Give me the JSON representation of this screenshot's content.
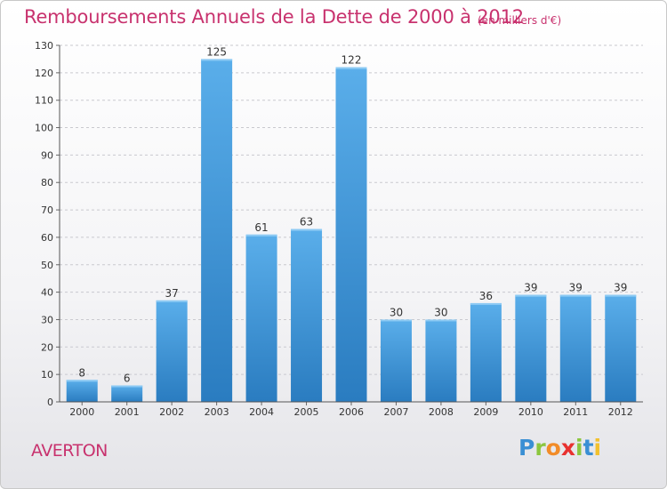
{
  "header": {
    "title": "Remboursements Annuels de la Dette de 2000 à 2012",
    "unit": "(en milliers d'€)"
  },
  "footer": {
    "town": "AVERTON",
    "logo_letters": [
      "P",
      "r",
      "o",
      "x",
      "i",
      "t",
      "i"
    ],
    "logo_colors": [
      "#3a8fd4",
      "#8cc63f",
      "#f28c28",
      "#e8312f",
      "#8cc63f",
      "#3a8fd4",
      "#f2c12e"
    ]
  },
  "chart_data": {
    "type": "bar",
    "categories": [
      "2000",
      "2001",
      "2002",
      "2003",
      "2004",
      "2005",
      "2006",
      "2007",
      "2008",
      "2009",
      "2010",
      "2011",
      "2012"
    ],
    "values": [
      8,
      6,
      37,
      125,
      61,
      63,
      122,
      30,
      30,
      36,
      39,
      39,
      39
    ],
    "ylim": [
      0,
      130
    ],
    "yticks": [
      0,
      10,
      20,
      30,
      40,
      50,
      60,
      70,
      80,
      90,
      100,
      110,
      120,
      130
    ],
    "grid": true,
    "bar_color_top": "#5aaeea",
    "bar_color_bottom": "#2a7cc0",
    "xlabel": "",
    "ylabel": ""
  }
}
